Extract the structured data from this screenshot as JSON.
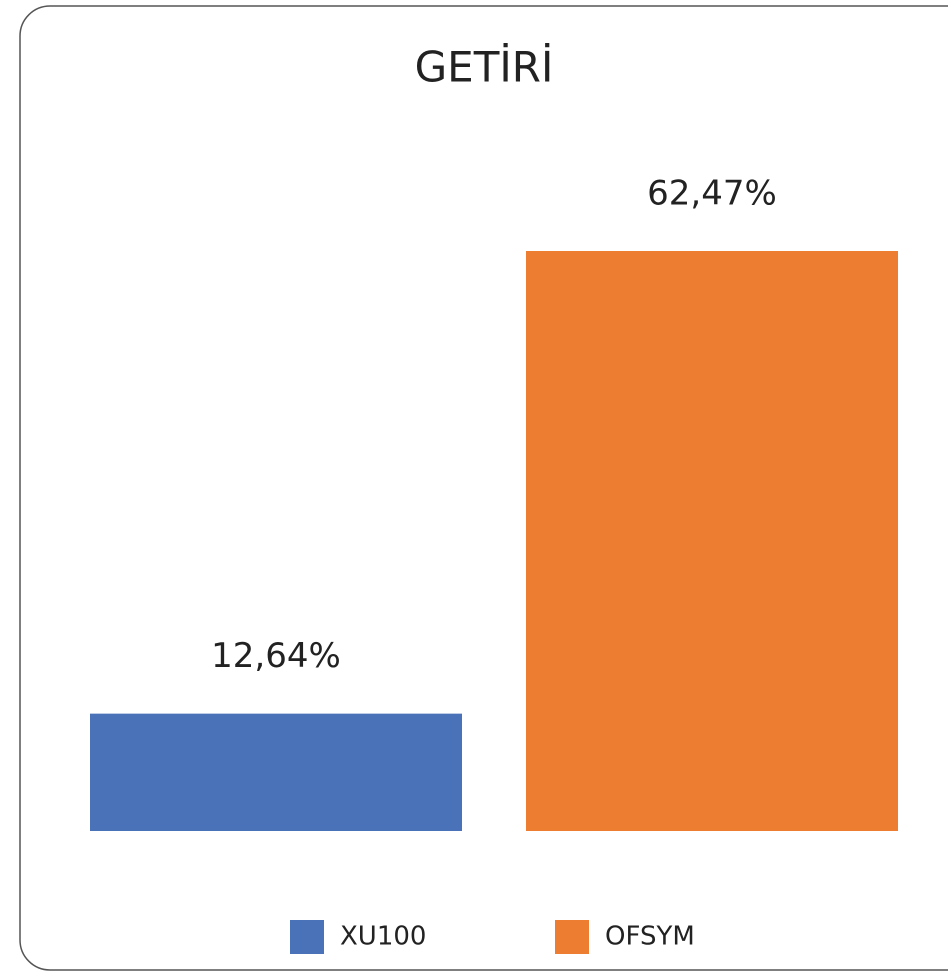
{
  "chart_data": {
    "type": "bar",
    "title": "GETİRİ",
    "series": [
      {
        "name": "XU100",
        "color": "#4a72b8",
        "values": [
          12.64
        ],
        "value_labels": [
          "12,64%"
        ]
      },
      {
        "name": "OFSYM",
        "color": "#ed7d31",
        "values": [
          62.47
        ],
        "value_labels": [
          "62,47%"
        ]
      }
    ],
    "legend": "bottom"
  }
}
